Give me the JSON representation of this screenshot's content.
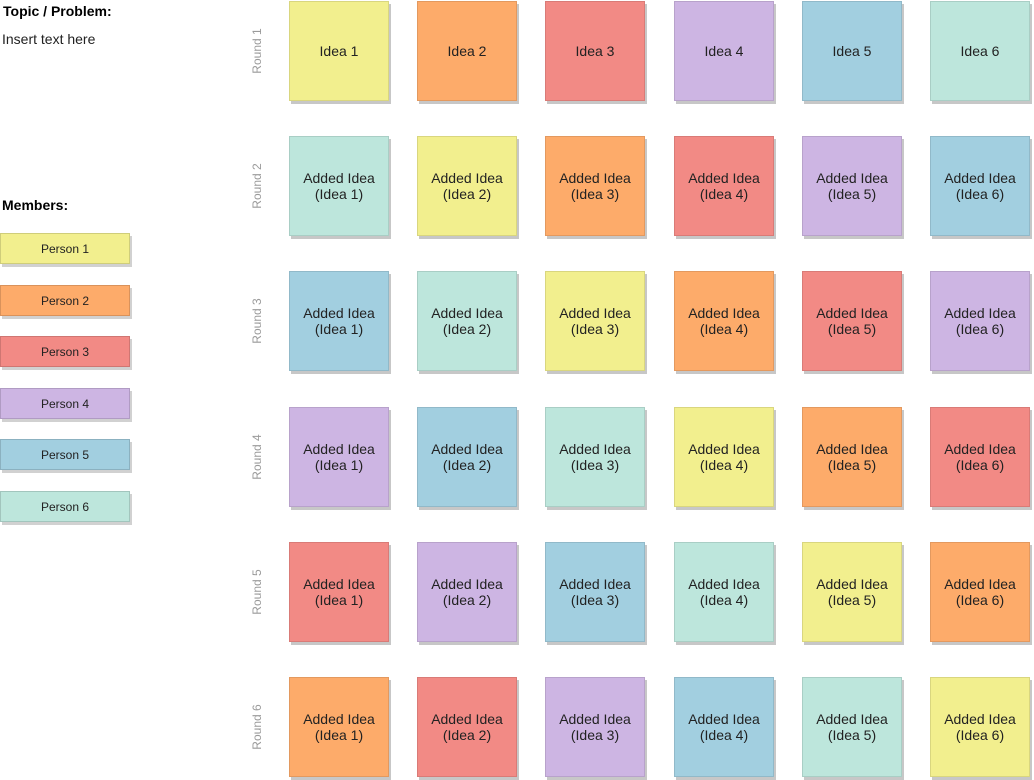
{
  "topic": {
    "title": "Topic / Problem:",
    "text": "Insert text here"
  },
  "members_title": "Members:",
  "colors": {
    "yellow": "#f2ef8e",
    "orange": "#fdab6a",
    "red": "#f28a85",
    "purple": "#cdb5e3",
    "blue": "#a2cfe0",
    "teal": "#bde6dc"
  },
  "members": [
    {
      "name": "Person 1",
      "color": "#f2ef8e"
    },
    {
      "name": "Person 2",
      "color": "#fdab6a"
    },
    {
      "name": "Person 3",
      "color": "#f28a85"
    },
    {
      "name": "Person 4",
      "color": "#cdb5e3"
    },
    {
      "name": "Person 5",
      "color": "#a2cfe0"
    },
    {
      "name": "Person 6",
      "color": "#bde6dc"
    }
  ],
  "rounds": [
    {
      "label": "Round 1",
      "notes": [
        {
          "line1": "Idea 1",
          "line2": "",
          "color": "#f2ef8e"
        },
        {
          "line1": "Idea 2",
          "line2": "",
          "color": "#fdab6a"
        },
        {
          "line1": "Idea 3",
          "line2": "",
          "color": "#f28a85"
        },
        {
          "line1": "Idea 4",
          "line2": "",
          "color": "#cdb5e3"
        },
        {
          "line1": "Idea 5",
          "line2": "",
          "color": "#a2cfe0"
        },
        {
          "line1": "Idea 6",
          "line2": "",
          "color": "#bde6dc"
        }
      ]
    },
    {
      "label": "Round 2",
      "notes": [
        {
          "line1": "Added Idea",
          "line2": "(Idea 1)",
          "color": "#bde6dc"
        },
        {
          "line1": "Added Idea",
          "line2": "(Idea 2)",
          "color": "#f2ef8e"
        },
        {
          "line1": "Added Idea",
          "line2": "(Idea 3)",
          "color": "#fdab6a"
        },
        {
          "line1": "Added Idea",
          "line2": "(Idea 4)",
          "color": "#f28a85"
        },
        {
          "line1": "Added Idea",
          "line2": "(Idea 5)",
          "color": "#cdb5e3"
        },
        {
          "line1": "Added Idea",
          "line2": "(Idea 6)",
          "color": "#a2cfe0"
        }
      ]
    },
    {
      "label": "Round 3",
      "notes": [
        {
          "line1": "Added Idea",
          "line2": "(Idea 1)",
          "color": "#a2cfe0"
        },
        {
          "line1": "Added Idea",
          "line2": "(Idea 2)",
          "color": "#bde6dc"
        },
        {
          "line1": "Added Idea",
          "line2": "(Idea 3)",
          "color": "#f2ef8e"
        },
        {
          "line1": "Added Idea",
          "line2": "(Idea 4)",
          "color": "#fdab6a"
        },
        {
          "line1": "Added Idea",
          "line2": "(Idea 5)",
          "color": "#f28a85"
        },
        {
          "line1": "Added Idea",
          "line2": "(Idea 6)",
          "color": "#cdb5e3"
        }
      ]
    },
    {
      "label": "Round 4",
      "notes": [
        {
          "line1": "Added Idea",
          "line2": "(Idea 1)",
          "color": "#cdb5e3"
        },
        {
          "line1": "Added Idea",
          "line2": "(Idea 2)",
          "color": "#a2cfe0"
        },
        {
          "line1": "Added Idea",
          "line2": "(Idea 3)",
          "color": "#bde6dc"
        },
        {
          "line1": "Added Idea",
          "line2": "(Idea 4)",
          "color": "#f2ef8e"
        },
        {
          "line1": "Added Idea",
          "line2": "(Idea 5)",
          "color": "#fdab6a"
        },
        {
          "line1": "Added Idea",
          "line2": "(Idea 6)",
          "color": "#f28a85"
        }
      ]
    },
    {
      "label": "Round 5",
      "notes": [
        {
          "line1": "Added Idea",
          "line2": "(Idea 1)",
          "color": "#f28a85"
        },
        {
          "line1": "Added Idea",
          "line2": "(Idea 2)",
          "color": "#cdb5e3"
        },
        {
          "line1": "Added Idea",
          "line2": "(Idea 3)",
          "color": "#a2cfe0"
        },
        {
          "line1": "Added Idea",
          "line2": "(Idea 4)",
          "color": "#bde6dc"
        },
        {
          "line1": "Added Idea",
          "line2": "(Idea 5)",
          "color": "#f2ef8e"
        },
        {
          "line1": "Added Idea",
          "line2": "(Idea 6)",
          "color": "#fdab6a"
        }
      ]
    },
    {
      "label": "Round 6",
      "notes": [
        {
          "line1": "Added Idea",
          "line2": "(Idea 1)",
          "color": "#fdab6a"
        },
        {
          "line1": "Added Idea",
          "line2": "(Idea 2)",
          "color": "#f28a85"
        },
        {
          "line1": "Added Idea",
          "line2": "(Idea 3)",
          "color": "#cdb5e3"
        },
        {
          "line1": "Added Idea",
          "line2": "(Idea 4)",
          "color": "#a2cfe0"
        },
        {
          "line1": "Added Idea",
          "line2": "(Idea 5)",
          "color": "#bde6dc"
        },
        {
          "line1": "Added Idea",
          "line2": "(Idea 6)",
          "color": "#f2ef8e"
        }
      ]
    }
  ]
}
